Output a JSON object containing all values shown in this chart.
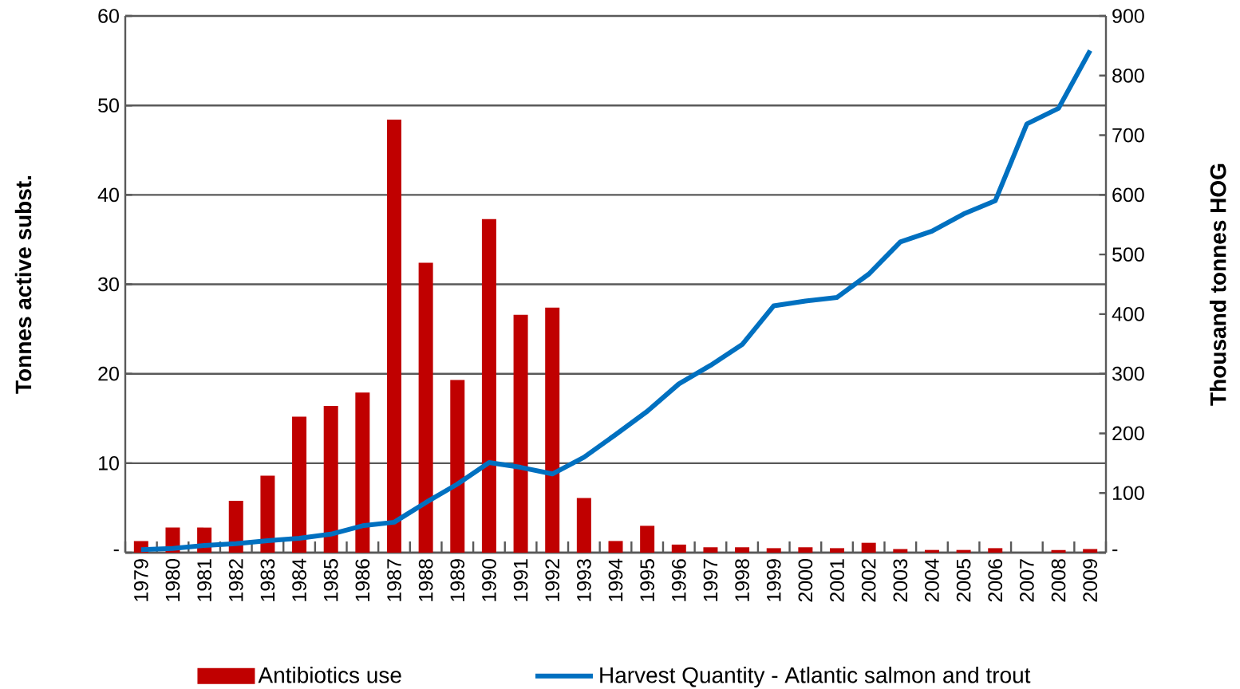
{
  "chart_data": {
    "type": "bar",
    "ylabel": "Tonnes active subst.",
    "y2label": "Thousand tonnes HOG",
    "categories": [
      "1979",
      "1980",
      "1981",
      "1982",
      "1983",
      "1984",
      "1985",
      "1986",
      "1987",
      "1988",
      "1989",
      "1990",
      "1991",
      "1992",
      "1993",
      "1994",
      "1995",
      "1996",
      "1997",
      "1998",
      "1999",
      "2000",
      "2001",
      "2002",
      "2003",
      "2004",
      "2005",
      "2006",
      "2007",
      "2008",
      "2009"
    ],
    "series": [
      {
        "name": "Antibiotics use",
        "color": "#c00000",
        "values": [
          1.3,
          2.8,
          2.8,
          5.8,
          8.6,
          15.2,
          16.4,
          17.9,
          48.4,
          32.4,
          19.3,
          37.3,
          26.6,
          27.4,
          6.1,
          1.3,
          3.0,
          0.9,
          0.6,
          0.6,
          0.5,
          0.6,
          0.5,
          1.1,
          0.4,
          0.3,
          0.3,
          0.5,
          null,
          0.3,
          0.4
        ]
      },
      {
        "name": "Harvest Quantity - Atlantic salmon and trout",
        "type": "line",
        "axis": "y2",
        "color": "#0070c0",
        "values": [
          5,
          7,
          12,
          15,
          20,
          24,
          31,
          45,
          51,
          84,
          115,
          151,
          143,
          132,
          160,
          198,
          237,
          283,
          314,
          349,
          414,
          422,
          428,
          467,
          521,
          539,
          568,
          590,
          719,
          745,
          842
        ]
      }
    ],
    "ylim": [
      0,
      60
    ],
    "yticks": [
      {
        "value": 0,
        "label": "-"
      },
      10,
      20,
      30,
      40,
      50,
      60
    ],
    "y2lim": [
      0,
      900
    ],
    "y2ticks": [
      {
        "value": 0,
        "label": "-"
      },
      100,
      200,
      300,
      400,
      500,
      600,
      700,
      800,
      900
    ],
    "grid": "y",
    "legend": "bottom",
    "marker": "none",
    "line_style": "solid"
  }
}
